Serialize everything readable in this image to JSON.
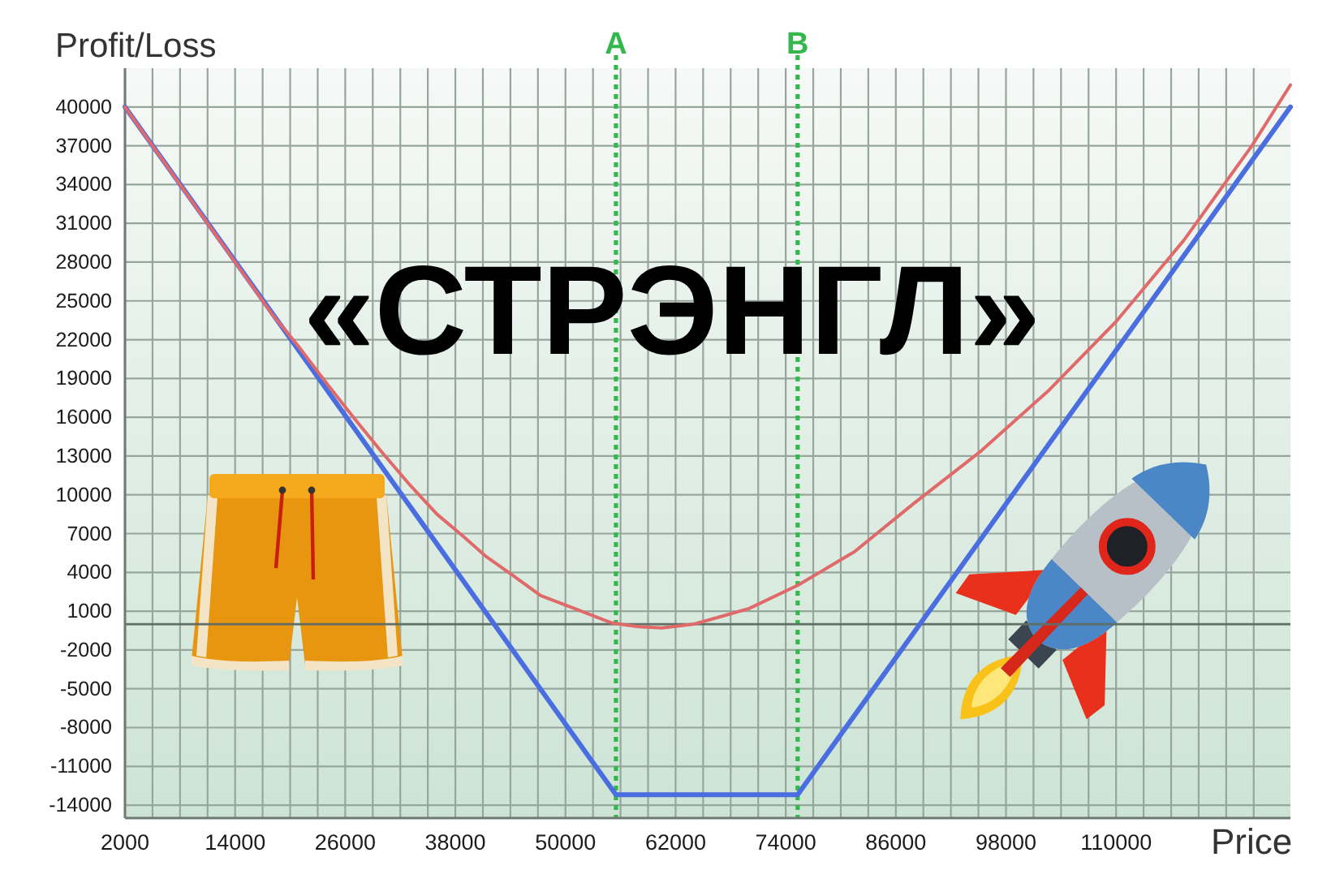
{
  "chart_data": {
    "type": "line",
    "title": "«СТРЭНГЛ»",
    "xlabel": "Price",
    "ylabel": "Profit/Loss",
    "xlim": [
      2000,
      129000
    ],
    "xticks": [
      2000,
      {
        "value": 5000,
        "label": null
      },
      {
        "value": 8000,
        "label": null
      },
      {
        "value": 11000,
        "label": null
      },
      14000,
      {
        "value": 17000,
        "label": null
      },
      {
        "value": 20000,
        "label": null
      },
      {
        "value": 23000,
        "label": null
      },
      26000,
      {
        "value": 29000,
        "label": null
      },
      {
        "value": 32000,
        "label": null
      },
      {
        "value": 35000,
        "label": null
      },
      38000,
      {
        "value": 41000,
        "label": null
      },
      {
        "value": 44000,
        "label": null
      },
      {
        "value": 47000,
        "label": null
      },
      50000,
      {
        "value": 53000,
        "label": null
      },
      {
        "value": 56000,
        "label": null
      },
      {
        "value": 59000,
        "label": null
      },
      62000,
      {
        "value": 65000,
        "label": null
      },
      {
        "value": 68000,
        "label": null
      },
      {
        "value": 71000,
        "label": null
      },
      74000,
      {
        "value": 77000,
        "label": null
      },
      {
        "value": 80000,
        "label": null
      },
      {
        "value": 83000,
        "label": null
      },
      86000,
      {
        "value": 89000,
        "label": null
      },
      {
        "value": 92000,
        "label": null
      },
      {
        "value": 95000,
        "label": null
      },
      98000,
      {
        "value": 101000,
        "label": null
      },
      {
        "value": 104000,
        "label": null
      },
      {
        "value": 107000,
        "label": null
      },
      110000,
      {
        "value": 113000,
        "label": null
      },
      {
        "value": 116000,
        "label": null
      },
      {
        "value": 119000,
        "label": null
      },
      {
        "value": 122000,
        "label": null
      },
      {
        "value": 125000,
        "label": null
      }
    ],
    "ylim": [
      -15000,
      43000
    ],
    "yticks": [
      -14000,
      -11000,
      -8000,
      -5000,
      -2000,
      1000,
      4000,
      7000,
      10000,
      13000,
      16000,
      19000,
      22000,
      25000,
      28000,
      31000,
      34000,
      37000,
      40000
    ],
    "grid": true,
    "series": [
      {
        "color": "#4a6ee0",
        "x": [
          2000,
          55500,
          75300,
          129000
        ],
        "values": [
          40000,
          -13200,
          -13200,
          40000
        ]
      },
      {
        "color": "#e06a6a",
        "x": [
          2000,
          14000,
          18000,
          21000,
          24000,
          27000,
          30000,
          33000,
          36000,
          39000,
          41400,
          44000,
          47300,
          51000,
          55000,
          58000,
          60500,
          64000,
          67000,
          70000,
          75300,
          81500,
          87900,
          95300,
          102700,
          110000,
          117400,
          124800,
          129000
        ],
        "values": [
          40000,
          28000,
          24000,
          21400,
          18600,
          15900,
          13300,
          10800,
          8500,
          6700,
          5200,
          3900,
          2200,
          1200,
          100,
          -200,
          -300,
          0,
          600,
          1200,
          3000,
          5600,
          9300,
          13400,
          18100,
          23400,
          29700,
          37000,
          41700
        ]
      }
    ],
    "ref_lines": [
      {
        "axis": "x",
        "value": 55500,
        "label": "A",
        "color": "#34b84c",
        "line_style": "dotted"
      },
      {
        "axis": "x",
        "value": 75300,
        "label": "B",
        "color": "#34b84c",
        "line_style": "dotted"
      },
      {
        "axis": "y",
        "value": 0,
        "color": "#5e6e64"
      }
    ]
  }
}
